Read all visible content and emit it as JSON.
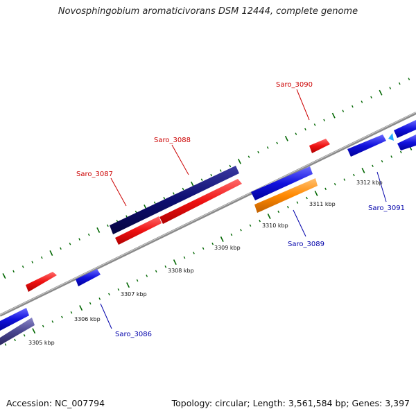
{
  "title": "Novosphingobium aromaticivorans DSM 12444, complete genome",
  "footer": {
    "accession": "Accession: NC_007794",
    "summary": "Topology: circular; Length: 3,561,584 bp; Genes: 3,397"
  },
  "colors": {
    "forward_gene": "#ee1111",
    "reverse_gene": "#1111dd",
    "highlight_gene": "#0d0d70",
    "rna_gene": "#ff8800",
    "label_forward": "#cc0000",
    "label_reverse": "#0000aa",
    "tick_major": "#006600",
    "backbone": "#8a8a8a"
  },
  "gene_labels": [
    {
      "name": "Saro_3086",
      "strand": "reverse"
    },
    {
      "name": "Saro_3087",
      "strand": "forward"
    },
    {
      "name": "Saro_3088",
      "strand": "forward"
    },
    {
      "name": "Saro_3089",
      "strand": "reverse"
    },
    {
      "name": "Saro_3090",
      "strand": "forward"
    },
    {
      "name": "Saro_3091",
      "strand": "reverse"
    }
  ],
  "position_labels": [
    "3305 kbp",
    "3306 kbp",
    "3307 kbp",
    "3308 kbp",
    "3309 kbp",
    "3310 kbp",
    "3311 kbp",
    "3312 kbp"
  ]
}
